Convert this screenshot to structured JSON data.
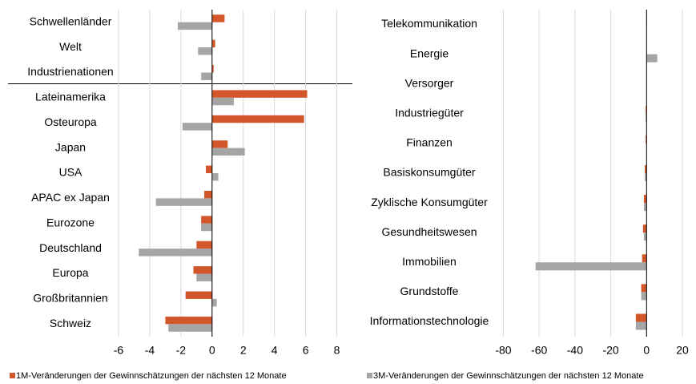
{
  "chart_data": [
    {
      "type": "bar",
      "orientation": "horizontal",
      "categories": [
        "Schwellenländer",
        "Welt",
        "Industrienationen",
        "Lateinamerika",
        "Osteuropa",
        "Japan",
        "USA",
        "APAC ex Japan",
        "Eurozone",
        "Deutschland",
        "Europa",
        "Großbritannien",
        "Schweiz"
      ],
      "series": [
        {
          "name": "1M-Veränderungen der Gewinnschätzungen der nächsten 12 Monate",
          "color": "#d4572c",
          "values": [
            0.8,
            0.2,
            0.1,
            6.1,
            5.9,
            1.0,
            -0.4,
            -0.5,
            -0.7,
            -1.0,
            -1.2,
            -1.7,
            -3.0
          ]
        },
        {
          "name": "3M-Veränderungen der Gewinnschätzungen der nächsten 12 Monate",
          "color": "#a5a5a5",
          "values": [
            -2.2,
            -0.9,
            -0.7,
            1.4,
            -1.9,
            2.1,
            0.4,
            -3.6,
            -0.7,
            -4.7,
            -1.0,
            0.3,
            -2.8
          ]
        }
      ],
      "xlim": [
        -6,
        9
      ],
      "xticks": [
        -6,
        -4,
        -2,
        0,
        2,
        4,
        6,
        8
      ],
      "grid": true
    },
    {
      "type": "bar",
      "orientation": "horizontal",
      "categories": [
        "Telekommunikation",
        "Energie",
        "Versorger",
        "Industriegüter",
        "Finanzen",
        "Basiskonsumgüter",
        "Zyklische Konsumgüter",
        "Gesundheitswesen",
        "Immobilien",
        "Grundstoffe",
        "Informationstechnologie"
      ],
      "series": [
        {
          "color": "#d4572c",
          "values": [
            0.2,
            0,
            0,
            -0.5,
            -0.5,
            -1,
            -1.5,
            -2,
            -2.5,
            -3,
            -6
          ]
        },
        {
          "color": "#a5a5a5",
          "values": [
            0,
            6,
            0,
            -0.5,
            0,
            -1,
            -1.5,
            -1.5,
            -62,
            -3,
            -6
          ]
        }
      ],
      "xlim": [
        -82,
        20
      ],
      "xticks": [
        -80,
        -60,
        -40,
        -20,
        0,
        20
      ],
      "grid": true
    }
  ]
}
